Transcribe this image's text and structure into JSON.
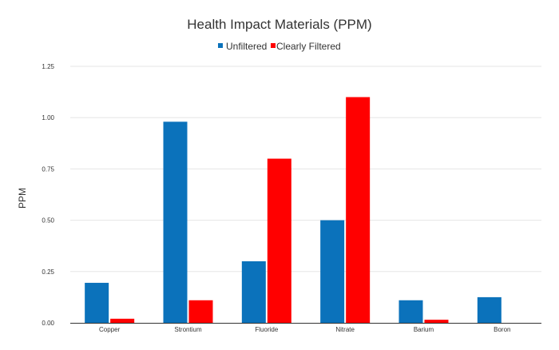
{
  "chart_data": {
    "type": "bar",
    "title": "Health Impact Materials (PPM)",
    "xlabel": "",
    "ylabel": "PPM",
    "ylim": [
      0,
      1.25
    ],
    "yticks": [
      "0.00",
      "0.25",
      "0.50",
      "0.75",
      "1.00",
      "1.25"
    ],
    "grid": true,
    "legend_position": "top-center",
    "categories": [
      "Copper",
      "Strontium",
      "Fluoride",
      "Nitrate",
      "Barium",
      "Boron"
    ],
    "series": [
      {
        "name": "Unfiltered",
        "color": "#0b72bb",
        "values": [
          0.195,
          0.98,
          0.3,
          0.5,
          0.11,
          0.125
        ]
      },
      {
        "name": "Clearly Filtered",
        "color": "#ff0000",
        "values": [
          0.02,
          0.11,
          0.8,
          1.1,
          0.015,
          0
        ]
      }
    ]
  }
}
